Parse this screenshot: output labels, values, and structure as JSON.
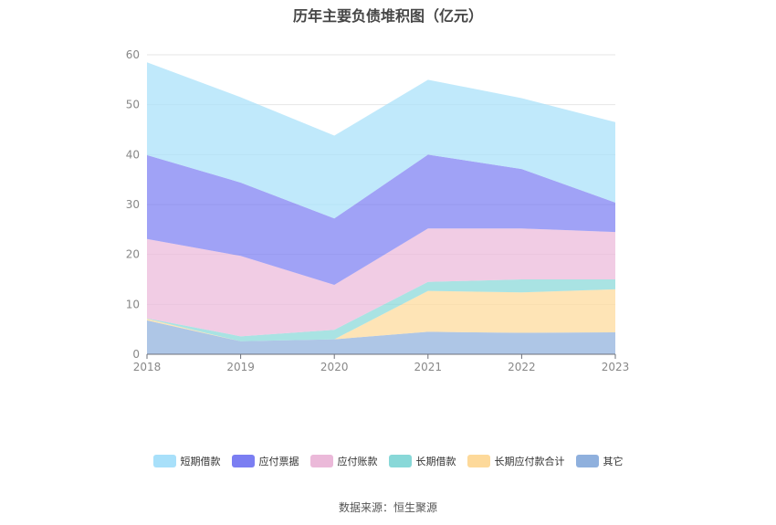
{
  "chart_data": {
    "type": "area",
    "title": "历年主要负债堆积图（亿元）",
    "source": "数据来源：恒生聚源",
    "x": [
      "2018",
      "2019",
      "2020",
      "2021",
      "2022",
      "2023"
    ],
    "ylim": [
      0,
      60
    ],
    "yticks": [
      0,
      10,
      20,
      30,
      40,
      50,
      60
    ],
    "stacked": true,
    "grid": true,
    "legend_position": "bottom",
    "series": [
      {
        "name": "其它",
        "color": "#8fb0dd",
        "values": [
          6.8,
          2.6,
          3.0,
          4.5,
          4.3,
          4.4
        ]
      },
      {
        "name": "长期应付款合计",
        "color": "#fdd99a",
        "values": [
          0.3,
          0.0,
          0.0,
          8.2,
          8.1,
          8.6
        ]
      },
      {
        "name": "长期借款",
        "color": "#88d8d8",
        "values": [
          0.1,
          1.0,
          1.9,
          1.8,
          2.6,
          2.0
        ]
      },
      {
        "name": "应付账款",
        "color": "#ebb9d9",
        "values": [
          15.9,
          16.1,
          9.0,
          10.7,
          10.2,
          9.5
        ]
      },
      {
        "name": "应付票据",
        "color": "#7b7ef2",
        "values": [
          16.8,
          14.7,
          13.3,
          14.8,
          11.9,
          5.9
        ]
      },
      {
        "name": "短期借款",
        "color": "#a8e0fa",
        "values": [
          18.6,
          17.1,
          16.6,
          15.0,
          14.2,
          16.1
        ]
      }
    ],
    "legend_order": [
      "短期借款",
      "应付票据",
      "应付账款",
      "长期借款",
      "长期应付款合计",
      "其它"
    ]
  }
}
